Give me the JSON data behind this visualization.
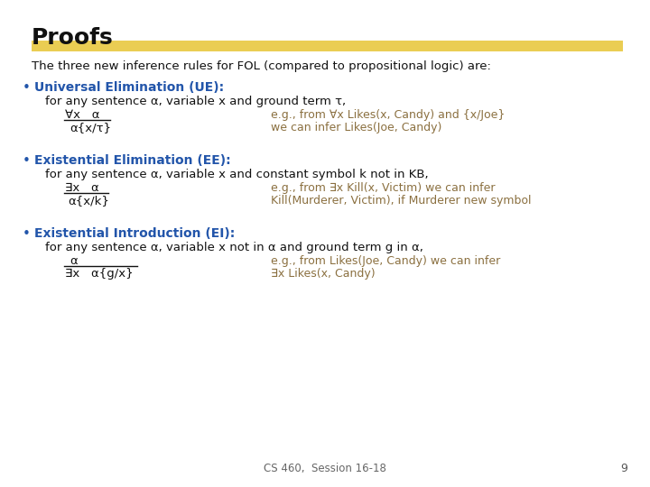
{
  "title": "Proofs",
  "bg_color": "#ffffff",
  "title_color": "#000000",
  "title_fontsize": 18,
  "highlight_color": "#e8c840",
  "blue_color": "#2255aa",
  "brown_color": "#8b7040",
  "black_color": "#111111",
  "body_fontsize": 9.5,
  "small_fontsize": 9,
  "footer_text": "CS 460,  Session 16-18",
  "page_num": "9",
  "intro_text": "The three new inference rules for FOL (compared to propositional logic) are:",
  "bullet1_title": "Universal Elimination (UE):",
  "bullet1_desc": "for any sentence α, variable x and ground term τ,",
  "bullet1_numerator": "∀x   α",
  "bullet1_denominator": "α{x/τ}",
  "bullet1_eg1": "e.g., from ∀x Likes(x, Candy) and {x/Joe}",
  "bullet1_eg2": "we can infer Likes(Joe, Candy)",
  "bullet2_title": "Existential Elimination (EE):",
  "bullet2_desc": "for any sentence α, variable x and constant symbol k not in KB,",
  "bullet2_numerator": "∃x   α",
  "bullet2_denominator": "α{x/k}",
  "bullet2_eg1": "e.g., from ∃x Kill(x, Victim) we can infer",
  "bullet2_eg2": "Kill(Murderer, Victim), if Murderer new symbol",
  "bullet3_title": "Existential Introduction (EI):",
  "bullet3_desc": "for any sentence α, variable x not in α and ground term g in α,",
  "bullet3_numerator": "α",
  "bullet3_denominator": "∃x   α{g/x}",
  "bullet3_eg1": "e.g., from Likes(Joe, Candy) we can infer",
  "bullet3_eg2": "∃x Likes(x, Candy)"
}
